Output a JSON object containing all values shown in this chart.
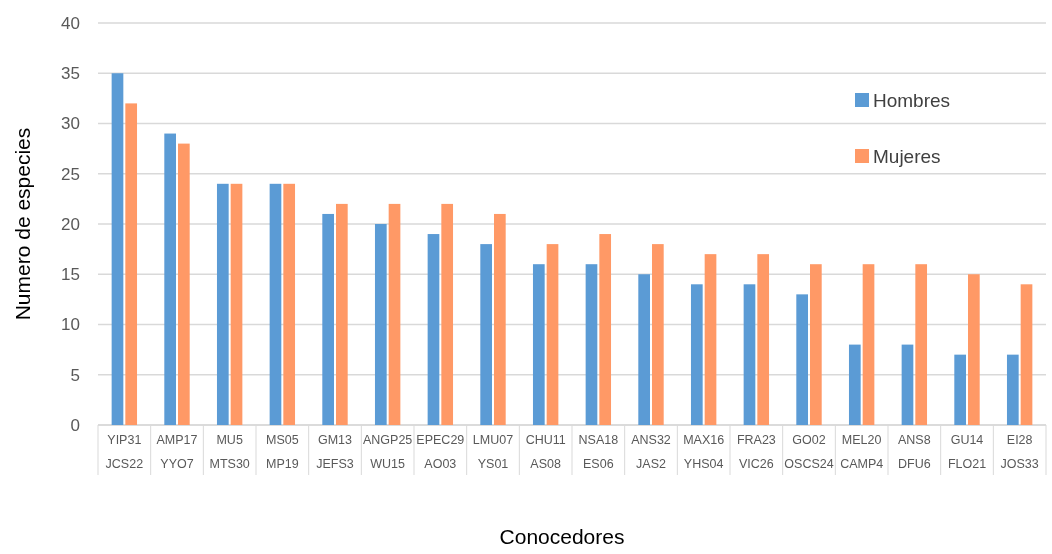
{
  "chart_data": {
    "type": "bar",
    "xlabel": "Conocedores",
    "ylabel": "Numero de especies",
    "categories": [
      "YIP31\nJCS22",
      "AMP17\nYYO7",
      "MU5\nMTS30",
      "MS05\nMP19",
      "GM13\nJEFS3",
      "ANGP25\nWU15",
      "EPEC29\nAO03",
      "LMU07\nYS01",
      "CHU11\nAS08",
      "NSA18\nES06",
      "ANS32\nJAS2",
      "MAX16\nYHS04",
      "FRA23\nVIC26",
      "GO02\nOSCS24",
      "MEL20\nCAMP4",
      "ANS8\nDFU6",
      "GU14\nFLO21",
      "EI28\nJOS33"
    ],
    "series": [
      {
        "name": "Hombres",
        "color": "#5b9bd5",
        "values": [
          35,
          29,
          24,
          24,
          21,
          20,
          19,
          18,
          16,
          16,
          15,
          14,
          14,
          13,
          8,
          8,
          7,
          7
        ]
      },
      {
        "name": "Mujeres",
        "color": "#ff9966",
        "values": [
          32,
          28,
          24,
          24,
          22,
          22,
          22,
          21,
          18,
          19,
          18,
          17,
          17,
          16,
          16,
          16,
          15,
          14
        ]
      }
    ],
    "ylim": [
      0,
      40
    ],
    "yticks": [
      0,
      5,
      10,
      15,
      20,
      25,
      30,
      35,
      40
    ],
    "grid": "y",
    "legend": "top right"
  }
}
